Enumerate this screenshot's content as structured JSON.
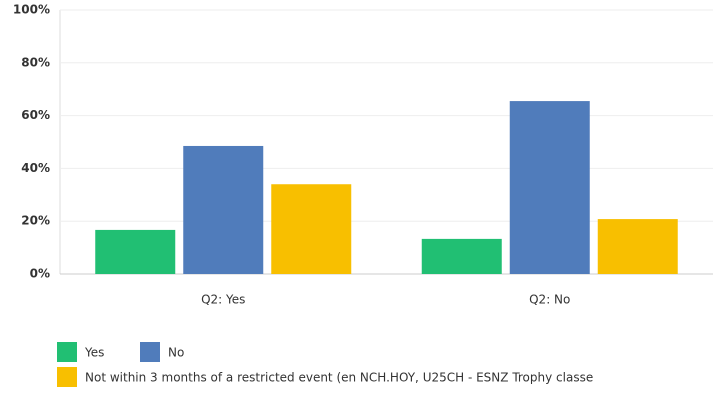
{
  "chart_data": {
    "type": "bar",
    "categories": [
      "Q2: Yes",
      "Q2: No"
    ],
    "series": [
      {
        "name": "Yes",
        "color": "#21bf73",
        "values": [
          16.7,
          13.3
        ]
      },
      {
        "name": "No",
        "color": "#507cbb",
        "values": [
          48.5,
          65.5
        ]
      },
      {
        "name": "Not within 3 months of a restricted event (en NCH.HOY, U25CH - ESNZ Trophy classe",
        "color": "#f8bf00",
        "values": [
          34,
          20.8
        ]
      }
    ],
    "ylim": [
      0,
      100
    ],
    "yticks": [
      {
        "value": 0,
        "label": "0%"
      },
      {
        "value": 20,
        "label": "20%"
      },
      {
        "value": 40,
        "label": "40%"
      },
      {
        "value": 60,
        "label": "60%"
      },
      {
        "value": 80,
        "label": "80%"
      },
      {
        "value": 100,
        "label": "100%"
      }
    ],
    "grid": true
  }
}
